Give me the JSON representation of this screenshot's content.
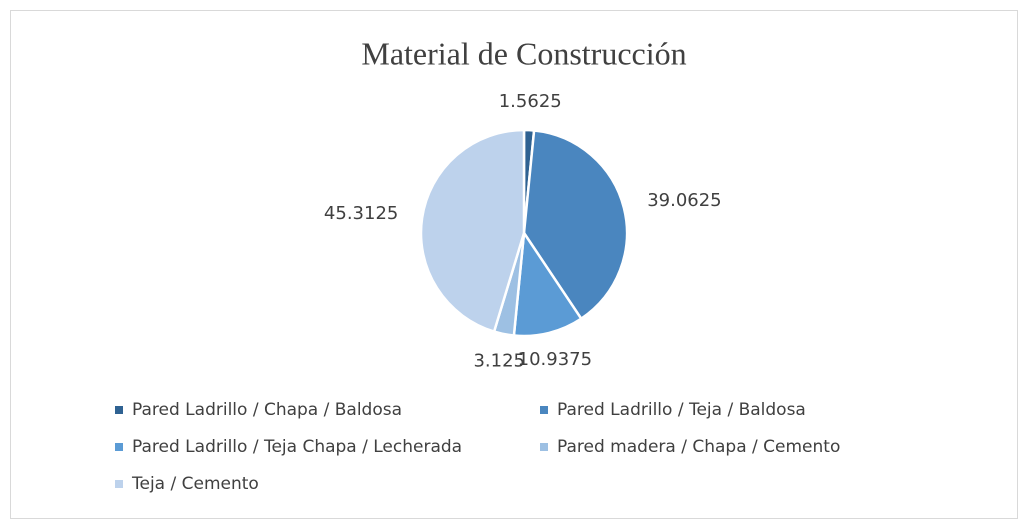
{
  "chart_data": {
    "type": "pie",
    "title": "Material de Construcción",
    "categories": [
      "Pared Ladrillo / Chapa / Baldosa",
      "Pared Ladrillo / Teja / Baldosa",
      "Pared Ladrillo / Teja Chapa / Lecherada",
      "Pared madera / Chapa / Cemento",
      "Teja / Cemento"
    ],
    "values": [
      1.5625,
      39.0625,
      10.9375,
      3.125,
      45.3125
    ],
    "colors": [
      "#2f6292",
      "#4a86bf",
      "#5b9bd5",
      "#9dc0e3",
      "#bdd2ec"
    ],
    "legend": "bottom"
  }
}
